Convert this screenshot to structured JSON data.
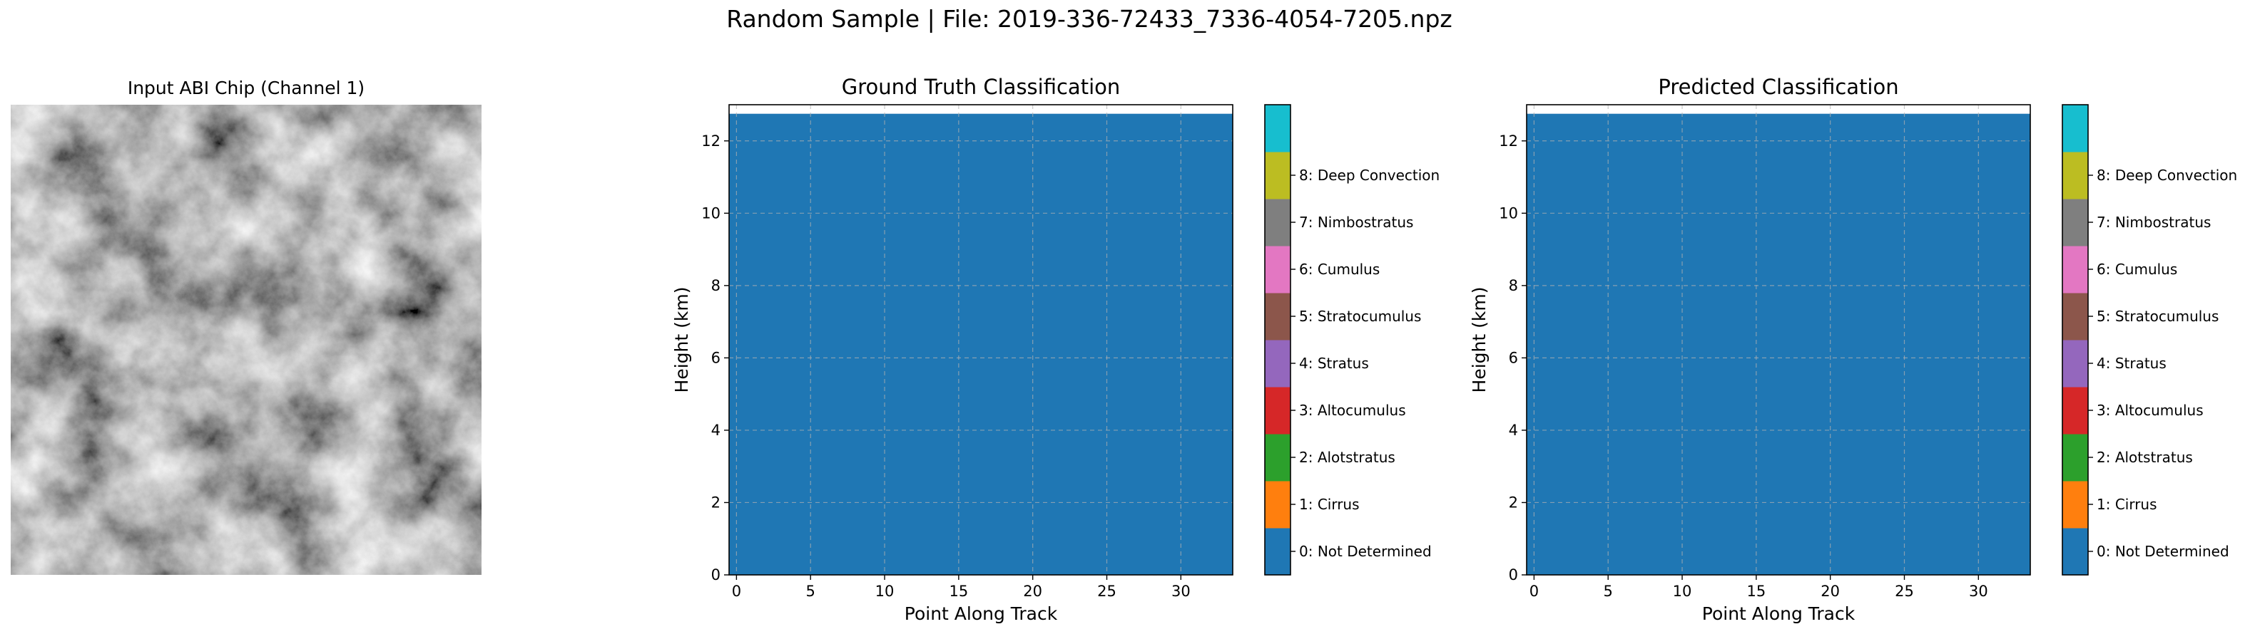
{
  "figure": {
    "suptitle": "Random Sample | File: 2019-336-72433_7336-4054-7205.npz"
  },
  "input_panel": {
    "title": "Input ABI Chip (Channel 1)"
  },
  "colorbar_classes": [
    {
      "value": 0,
      "label": "0: Not Determined",
      "color": "#1f77b4"
    },
    {
      "value": 1,
      "label": "1: Cirrus",
      "color": "#ff7f0e"
    },
    {
      "value": 2,
      "label": "2: Alotstratus",
      "color": "#2ca02c"
    },
    {
      "value": 3,
      "label": "3: Altocumulus",
      "color": "#d62728"
    },
    {
      "value": 4,
      "label": "4: Stratus",
      "color": "#9467bd"
    },
    {
      "value": 5,
      "label": "5: Stratocumulus",
      "color": "#8c564b"
    },
    {
      "value": 6,
      "label": "6: Cumulus",
      "color": "#e377c2"
    },
    {
      "value": 7,
      "label": "7: Nimbostratus",
      "color": "#7f7f7f"
    },
    {
      "value": 8,
      "label": "8: Deep Convection",
      "color": "#bcbd22"
    },
    {
      "value": 9,
      "label": "",
      "color": "#17becf"
    }
  ],
  "chart_data": [
    {
      "type": "heatmap",
      "title": "Ground Truth Classification",
      "xlabel": "Point Along Track",
      "ylabel": "Height (km)",
      "xlim": [
        -0.5,
        33.5
      ],
      "ylim": [
        0,
        13
      ],
      "xticks": [
        0,
        5,
        10,
        15,
        20,
        25,
        30
      ],
      "yticks": [
        0,
        2,
        4,
        6,
        8,
        10,
        12
      ],
      "grid": true,
      "fill_class": 0,
      "fill_top_km": 12.75
    },
    {
      "type": "heatmap",
      "title": "Predicted Classification",
      "xlabel": "Point Along Track",
      "ylabel": "Height (km)",
      "xlim": [
        -0.5,
        33.5
      ],
      "ylim": [
        0,
        13
      ],
      "xticks": [
        0,
        5,
        10,
        15,
        20,
        25,
        30
      ],
      "yticks": [
        0,
        2,
        4,
        6,
        8,
        10,
        12
      ],
      "grid": true,
      "fill_class": 0,
      "fill_top_km": 12.75
    }
  ]
}
